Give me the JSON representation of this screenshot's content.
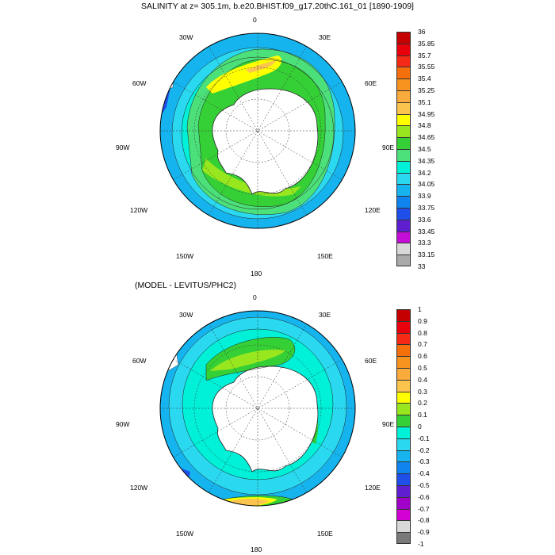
{
  "figure": {
    "title1": "SALINITY at z= 305.1m, b.e20.BHIST.f09_g17.20thC.161_01 [1890-1909]",
    "title2": "(MODEL - LEVITUS/PHC2)"
  },
  "lon_labels": [
    "0",
    "30E",
    "60E",
    "90E",
    "120E",
    "150E",
    "180",
    "150W",
    "120W",
    "90W",
    "60W",
    "30W"
  ],
  "colorbar1": {
    "labels": [
      "36",
      "35.85",
      "35.7",
      "35.55",
      "35.4",
      "35.25",
      "35.1",
      "34.95",
      "34.8",
      "34.65",
      "34.5",
      "34.35",
      "34.2",
      "34.05",
      "33.9",
      "33.75",
      "33.6",
      "33.45",
      "33.3",
      "33.15",
      "33"
    ],
    "colors": [
      "#c40000",
      "#e8000c",
      "#f52a16",
      "#f56f0a",
      "#f7931e",
      "#f9ab3c",
      "#fbc54d",
      "#ffff00",
      "#97e61e",
      "#35d035",
      "#4ce07a",
      "#00f0d8",
      "#2ad8f0",
      "#16b4ef",
      "#0f84ee",
      "#1f4fe8",
      "#5f1fd0",
      "#c20ed6",
      "#d8d8d8",
      "#aaaaaa"
    ]
  },
  "colorbar2": {
    "labels": [
      "1",
      "0.9",
      "0.8",
      "0.7",
      "0.6",
      "0.5",
      "0.4",
      "0.3",
      "0.2",
      "0.1",
      "0",
      "-0.1",
      "-0.2",
      "-0.3",
      "-0.4",
      "-0.5",
      "-0.6",
      "-0.7",
      "-0.8",
      "-0.9",
      "-1"
    ],
    "colors": [
      "#c40000",
      "#e8000c",
      "#f52a16",
      "#f56f0a",
      "#f7931e",
      "#f9ab3c",
      "#fbc54d",
      "#ffff00",
      "#97e61e",
      "#35d035",
      "#00f0d8",
      "#2ad8f0",
      "#16b4ef",
      "#0f84ee",
      "#1f4fe8",
      "#5f1fd0",
      "#a000c8",
      "#d300d3",
      "#d8d8d8",
      "#7a7a7a"
    ]
  }
}
